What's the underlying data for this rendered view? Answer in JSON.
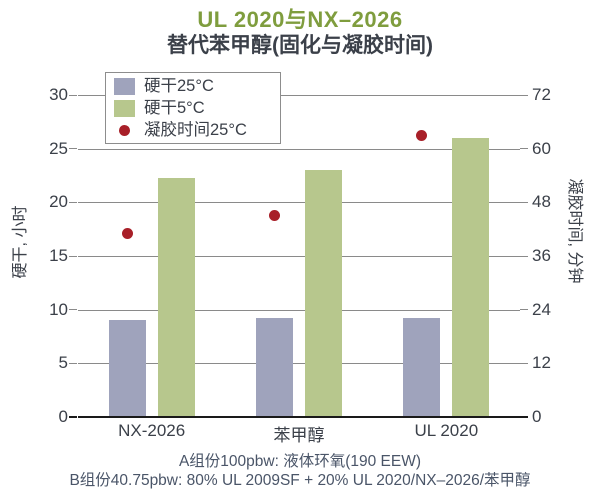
{
  "title": {
    "line1": "UL 2020与NX–2026",
    "line2": "替代苯甲醇(固化与凝胶时间)"
  },
  "legend": {
    "items": [
      {
        "label": "硬干25°C",
        "swatch": "square",
        "color": "#9fa3bc"
      },
      {
        "label": "硬干5°C",
        "swatch": "square",
        "color": "#b7c78d"
      },
      {
        "label": "凝胶时间25°C",
        "swatch": "dot",
        "color": "#a81f28"
      }
    ]
  },
  "chart_data": {
    "type": "bar",
    "title": "UL 2020与NX–2026 替代苯甲醇(固化与凝胶时间)",
    "categories": [
      "NX-2026",
      "苯甲醇",
      "UL 2020"
    ],
    "series": [
      {
        "name": "硬干25°C",
        "type": "bar",
        "axis": "left",
        "color": "#9fa3bc",
        "values": [
          9.0,
          9.2,
          9.2
        ]
      },
      {
        "name": "硬干5°C",
        "type": "bar",
        "axis": "left",
        "color": "#b7c78d",
        "values": [
          22.3,
          23.0,
          26.0
        ]
      },
      {
        "name": "凝胶时间25°C",
        "type": "scatter",
        "axis": "right",
        "color": "#a81f28",
        "values": [
          41,
          45,
          63
        ]
      }
    ],
    "left_axis": {
      "title": "硬干, 小时",
      "min": 0,
      "max": 30,
      "tick_step": 5,
      "ticks": [
        0,
        5,
        10,
        15,
        20,
        25,
        30
      ]
    },
    "right_axis": {
      "title": "凝胶时间, 分钟",
      "min": 0,
      "max": 72,
      "tick_step": 12,
      "ticks": [
        0,
        12,
        24,
        36,
        48,
        60,
        72
      ]
    },
    "grid": true,
    "legend_position": "top-left-inside",
    "xlabel": ""
  },
  "footnotes": {
    "line1": "A组份100pbw: 液体环氧(190 EEW)",
    "line2": "B组份40.75pbw: 80% UL 2009SF + 20% UL 2020/NX–2026/苯甲醇"
  },
  "colors": {
    "title_green": "#7f9d3e",
    "text_dark": "#3b4049",
    "footnote_text": "#4a5568",
    "bar_hard_dry_25c": "#9fa3bc",
    "bar_hard_dry_5c": "#b7c78d",
    "gel_time_dot": "#a81f28",
    "gridline": "#8a8a8a",
    "axis_line": "#1a1a1a",
    "legend_border": "#8d8d8d",
    "background": "#ffffff"
  }
}
